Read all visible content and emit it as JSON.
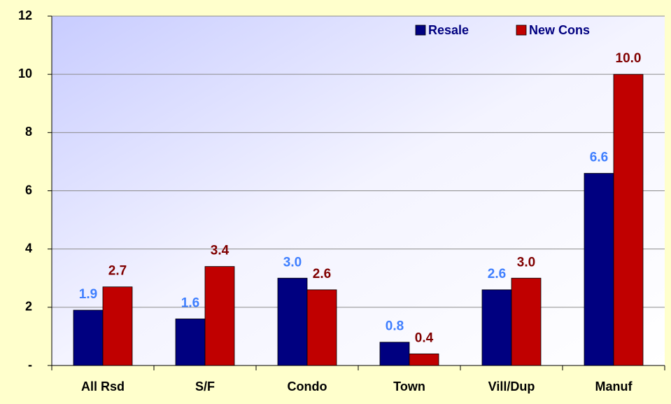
{
  "chart_data": {
    "type": "bar",
    "categories": [
      "All Rsd",
      "S/F",
      "Condo",
      "Town",
      "Vill/Dup",
      "Manuf"
    ],
    "series": [
      {
        "name": "Resale",
        "color": "#000080",
        "label_color": "#3f7fff",
        "values": [
          1.9,
          1.6,
          3.0,
          0.8,
          2.6,
          6.6
        ],
        "value_labels": [
          "1.9",
          "1.6",
          "3.0",
          "0.8",
          "2.6",
          "6.6"
        ]
      },
      {
        "name": "New Cons",
        "color": "#c00000",
        "label_color": "#800000",
        "values": [
          2.7,
          3.4,
          2.6,
          0.4,
          3.0,
          10.0
        ],
        "value_labels": [
          "2.7",
          "3.4",
          "2.6",
          "0.4",
          "3.0",
          "10.0"
        ]
      }
    ],
    "ylim": [
      0,
      12
    ],
    "yticks": [
      {
        "value": 0,
        "label": "-"
      },
      2,
      4,
      6,
      8,
      10,
      12
    ],
    "grid": true,
    "legend": "upper right"
  }
}
